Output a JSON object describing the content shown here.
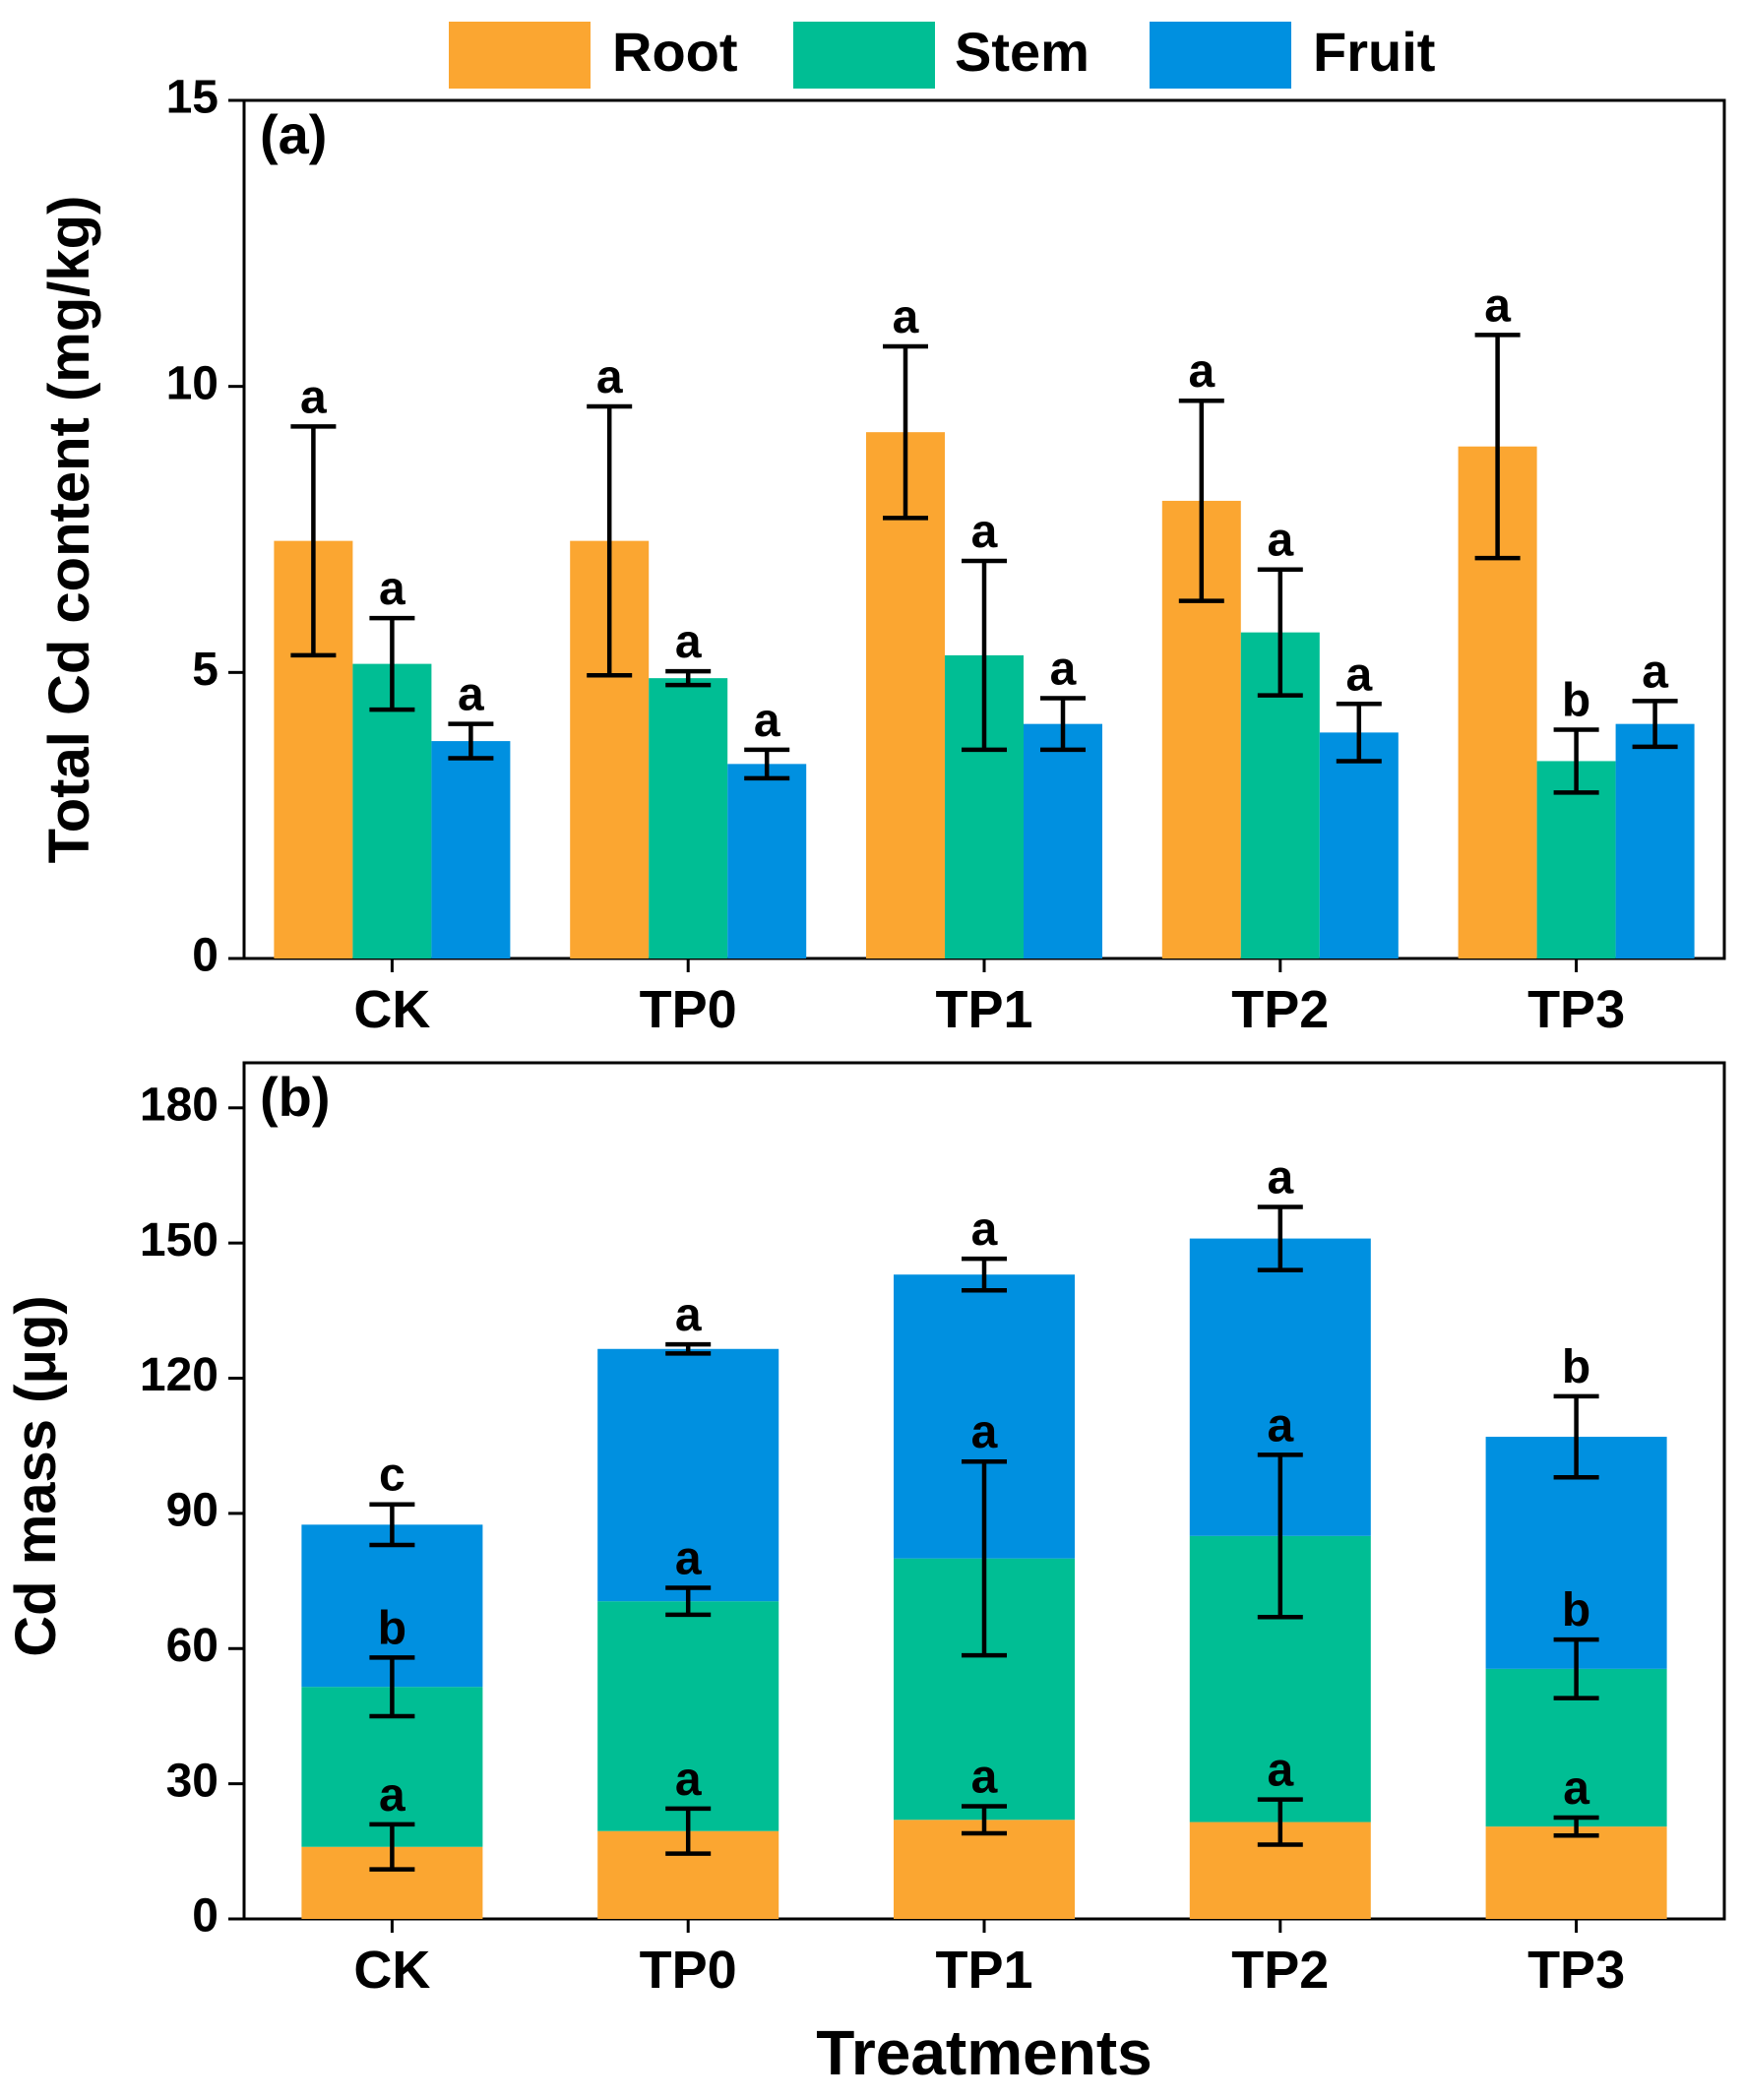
{
  "legend": {
    "items": [
      {
        "name": "Root",
        "color": "#FBA631"
      },
      {
        "name": "Stem",
        "color": "#00BE94"
      },
      {
        "name": "Fruit",
        "color": "#0090E0"
      }
    ]
  },
  "colors": {
    "root": "#FBA631",
    "stem": "#00BE94",
    "fruit": "#0090E0"
  },
  "chart_data": [
    {
      "panel": "(a)",
      "type": "bar",
      "mode": "grouped",
      "categories": [
        "CK",
        "TP0",
        "TP1",
        "TP2",
        "TP3"
      ],
      "ylabel": "Total Cd content (mg/kg)",
      "xlabel": "",
      "ylim": [
        0,
        15
      ],
      "yticks": [
        0,
        5,
        10,
        15
      ],
      "series": [
        {
          "name": "Root",
          "values": [
            7.3,
            7.3,
            9.2,
            8.0,
            8.95
          ],
          "errors": [
            2.0,
            2.35,
            1.5,
            1.75,
            1.95
          ],
          "letters": [
            "a",
            "a",
            "a",
            "a",
            "a"
          ]
        },
        {
          "name": "Stem",
          "values": [
            5.15,
            4.9,
            5.3,
            5.7,
            3.45
          ],
          "errors": [
            0.8,
            0.12,
            1.65,
            1.1,
            0.55
          ],
          "letters": [
            "a",
            "a",
            "a",
            "a",
            "b"
          ]
        },
        {
          "name": "Fruit",
          "values": [
            3.8,
            3.4,
            4.1,
            3.95,
            4.1
          ],
          "errors": [
            0.3,
            0.25,
            0.45,
            0.5,
            0.4
          ],
          "letters": [
            "a",
            "a",
            "a",
            "a",
            "a"
          ]
        }
      ]
    },
    {
      "panel": "(b)",
      "type": "bar",
      "mode": "stacked",
      "categories": [
        "CK",
        "TP0",
        "TP1",
        "TP2",
        "TP3"
      ],
      "ylabel": "Cd mass (μg)",
      "xlabel": "Treatments",
      "ylim": [
        0,
        190
      ],
      "yticks": [
        0,
        30,
        60,
        90,
        120,
        150,
        180
      ],
      "series": [
        {
          "name": "Root",
          "values": [
            16,
            19.5,
            22,
            21.5,
            20.5
          ],
          "errors": [
            5,
            5,
            3,
            5,
            2
          ],
          "letters": [
            "a",
            "a",
            "a",
            "a",
            "a"
          ]
        },
        {
          "name": "Stem",
          "values": [
            35.5,
            51,
            58,
            63.5,
            35
          ],
          "errors": [
            6.5,
            3,
            21.5,
            18,
            6.5
          ],
          "letters": [
            "b",
            "a",
            "a",
            "a",
            "b"
          ]
        },
        {
          "name": "Fruit",
          "values": [
            36,
            56,
            63,
            66,
            51.5
          ],
          "errors": [
            4.5,
            1,
            3.5,
            7,
            9
          ],
          "letters": [
            "c",
            "a",
            "a",
            "a",
            "b"
          ]
        }
      ]
    }
  ]
}
